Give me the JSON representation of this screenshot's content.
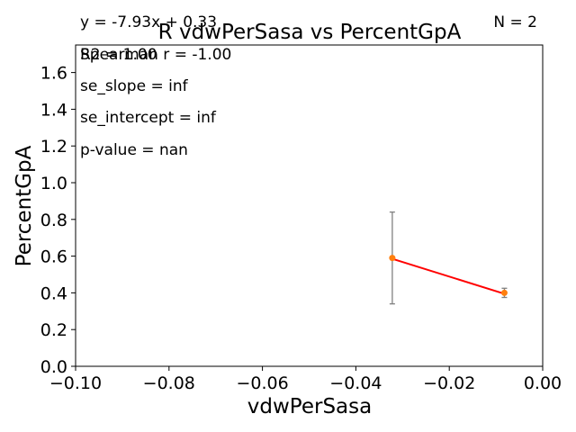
{
  "chart_data": {
    "type": "line",
    "title": "R vdwPerSasa vs PercentGpA",
    "xlabel": "vdwPerSasa",
    "ylabel": "PercentGpA",
    "xlim": [
      -0.1,
      0.0
    ],
    "ylim": [
      0.0,
      1.75
    ],
    "x_ticks": [
      -0.1,
      -0.08,
      -0.06,
      -0.04,
      -0.02,
      0.0
    ],
    "x_tick_labels": [
      "−0.10",
      "−0.08",
      "−0.06",
      "−0.04",
      "−0.02",
      "0.00"
    ],
    "y_ticks": [
      0.0,
      0.2,
      0.4,
      0.6,
      0.8,
      1.0,
      1.2,
      1.4,
      1.6
    ],
    "y_tick_labels": [
      "0.0",
      "0.2",
      "0.4",
      "0.6",
      "0.8",
      "1.0",
      "1.2",
      "1.4",
      "1.6"
    ],
    "grid": false,
    "points": [
      {
        "x": -0.0322,
        "y": 0.59,
        "err": 0.25
      },
      {
        "x": -0.0082,
        "y": 0.4,
        "err": 0.025
      }
    ],
    "fit_line": {
      "slope": -7.93,
      "intercept": 0.33
    },
    "colors": {
      "points": "#ff7f0e",
      "fit_line": "#ff0000",
      "errorbars": "#808080"
    },
    "annotations": {
      "equation": "y = -7.93x + 0.33",
      "r2": "R2 = 1.00",
      "spearman": "Spearman r = -1.00",
      "se_slope": "se_slope = inf",
      "se_intercept": "se_intercept = inf",
      "p_value": "p-value = nan",
      "n": "N = 2"
    }
  }
}
